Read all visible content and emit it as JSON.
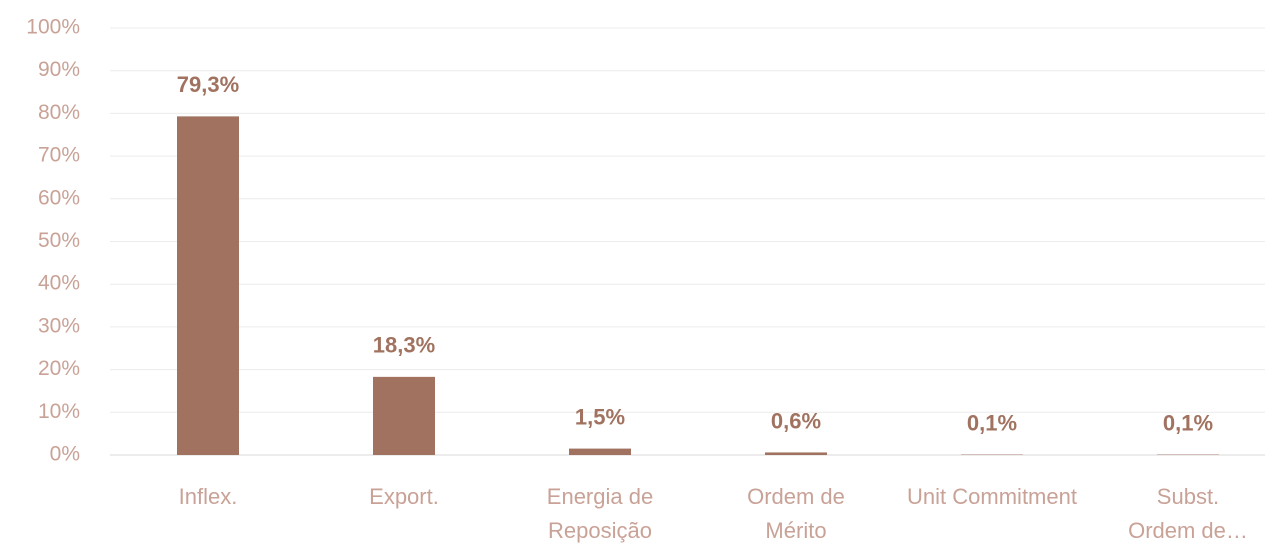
{
  "chart_data": {
    "type": "bar",
    "categories": [
      "Inflex.",
      "Export.",
      "Energia de\nReposição",
      "Ordem de\nMérito",
      "Unit Commitment",
      "Subst.\nOrdem de…"
    ],
    "values": [
      79.3,
      18.3,
      1.5,
      0.6,
      0.1,
      0.1
    ],
    "value_labels": [
      "79,3%",
      "18,3%",
      "1,5%",
      "0,6%",
      "0,1%",
      "0,1%"
    ],
    "color": "#a0725f",
    "ylim": [
      0,
      100
    ],
    "yticks": [
      {
        "value": 0,
        "label": "0%"
      },
      {
        "value": 10,
        "label": "10%"
      },
      {
        "value": 20,
        "label": "20%"
      },
      {
        "value": 30,
        "label": "30%"
      },
      {
        "value": 40,
        "label": "40%"
      },
      {
        "value": 50,
        "label": "50%"
      },
      {
        "value": 60,
        "label": "60%"
      },
      {
        "value": 70,
        "label": "70%"
      },
      {
        "value": 80,
        "label": "80%"
      },
      {
        "value": 90,
        "label": "90%"
      },
      {
        "value": 100,
        "label": "100%"
      }
    ],
    "grid": true
  }
}
